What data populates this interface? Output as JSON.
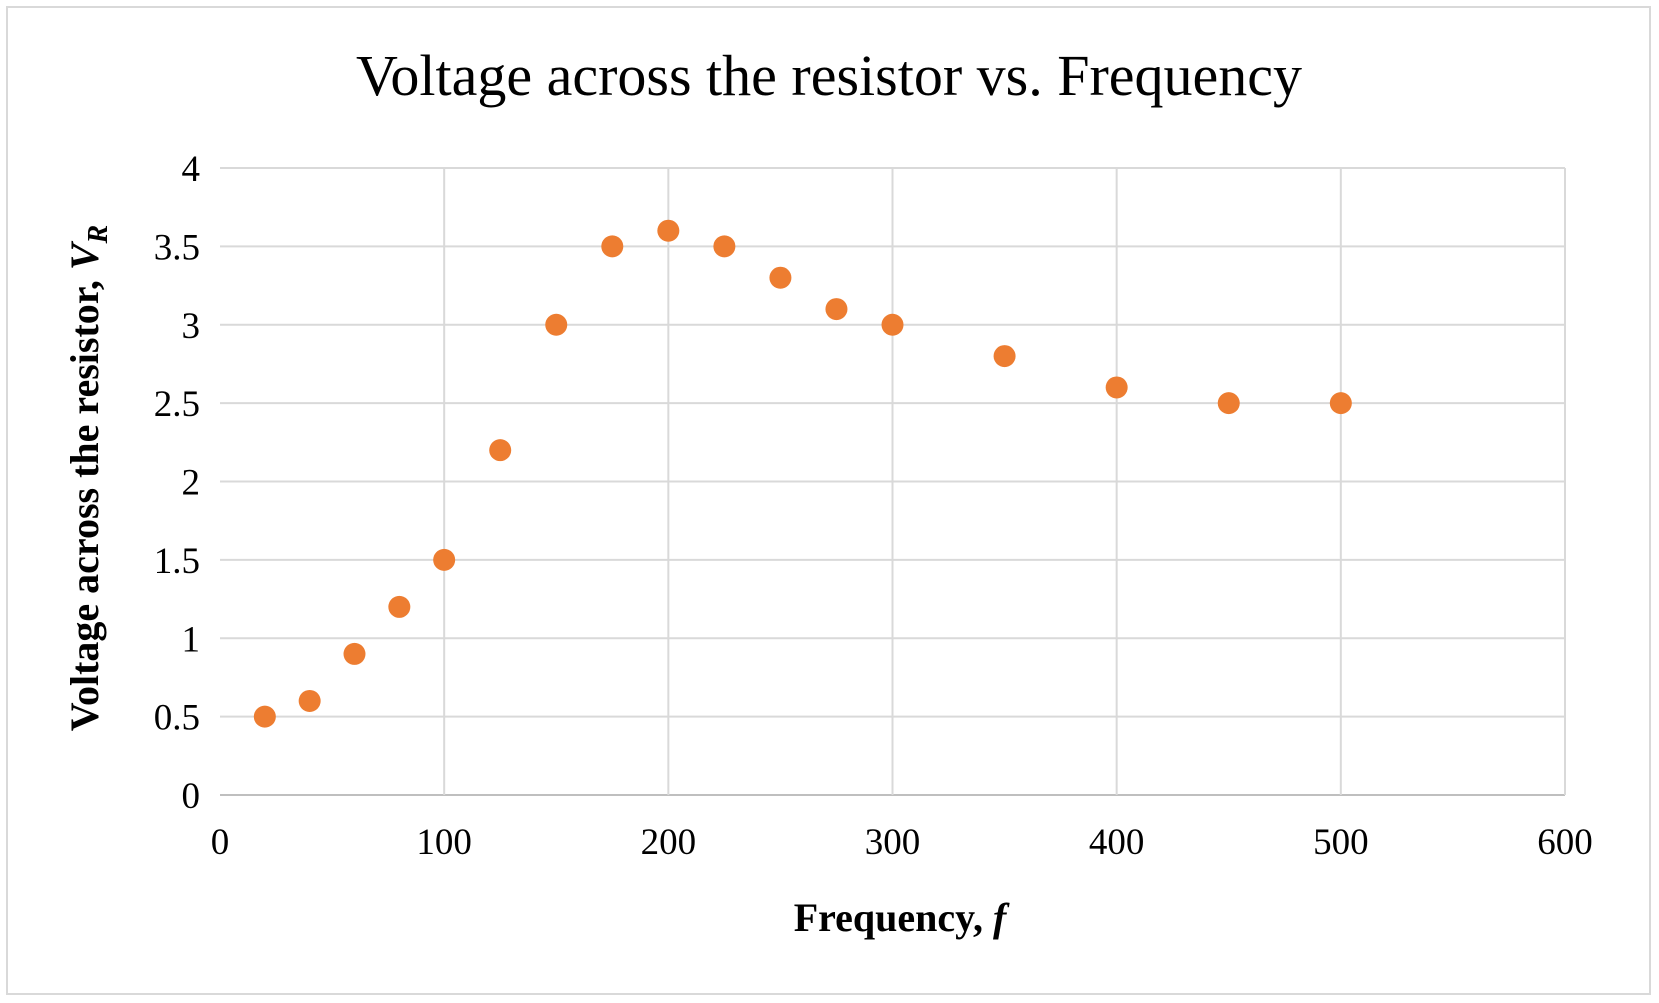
{
  "chart_data": {
    "type": "scatter",
    "title": "Voltage across the resistor vs. Frequency",
    "xlabel": "Frequency, ",
    "xlabel_var": "f",
    "ylabel": "Voltage across the resistor, ",
    "ylabel_var": "V",
    "ylabel_sub": "R",
    "xlim": [
      0,
      600
    ],
    "ylim": [
      0,
      4
    ],
    "x_ticks": [
      0,
      100,
      200,
      300,
      400,
      500,
      600
    ],
    "y_ticks": [
      0,
      0.5,
      1,
      1.5,
      2,
      2.5,
      3,
      3.5,
      4
    ],
    "grid": true,
    "legend": "none",
    "marker_color": "#ED7D31",
    "series": [
      {
        "x": [
          20,
          40,
          60,
          80,
          100,
          125,
          150,
          175,
          200,
          225,
          250,
          275,
          300,
          350,
          400,
          450,
          500
        ],
        "y": [
          0.5,
          0.6,
          0.9,
          1.2,
          1.5,
          2.2,
          3.0,
          3.5,
          3.6,
          3.5,
          3.3,
          3.1,
          3.0,
          2.8,
          2.6,
          2.5,
          2.5
        ]
      }
    ]
  }
}
